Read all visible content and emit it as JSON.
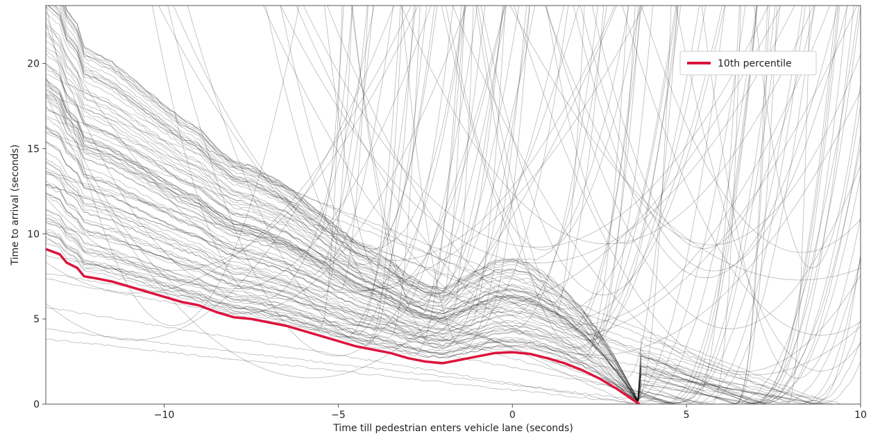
{
  "chart_data": {
    "type": "line",
    "title": "",
    "xlabel": "Time till pedestrian enters vehicle lane (seconds)",
    "ylabel": "Time to arrival (seconds)",
    "xlim": [
      -13.4,
      10
    ],
    "ylim": [
      0,
      23.4
    ],
    "xticks": [
      -10,
      -5,
      0,
      5,
      10
    ],
    "xtick_labels": [
      "−10",
      "−5",
      "0",
      "5",
      "10"
    ],
    "yticks": [
      0,
      5,
      10,
      15,
      20
    ],
    "ytick_labels": [
      "0",
      "5",
      "10",
      "15",
      "20"
    ],
    "grid": false,
    "legend": {
      "position": "top-right",
      "entries": [
        "10th percentile"
      ]
    },
    "colors": {
      "highlight": "#dc143c",
      "trajectories": "#000000"
    },
    "series": [
      {
        "name": "10th percentile",
        "x": [
          -13.4,
          -13.0,
          -12.8,
          -12.5,
          -12.3,
          -12.0,
          -11.5,
          -11.0,
          -10.5,
          -10.0,
          -9.5,
          -9.0,
          -8.5,
          -8.0,
          -7.5,
          -7.0,
          -6.5,
          -6.0,
          -5.5,
          -5.0,
          -4.5,
          -4.0,
          -3.5,
          -3.0,
          -2.5,
          -2.0,
          -1.5,
          -1.0,
          -0.5,
          0.0,
          0.5,
          1.0,
          1.5,
          2.0,
          2.5,
          3.0,
          3.5,
          3.65
        ],
        "y": [
          9.1,
          8.8,
          8.3,
          8.0,
          7.5,
          7.4,
          7.2,
          6.9,
          6.6,
          6.3,
          6.0,
          5.8,
          5.4,
          5.1,
          5.0,
          4.8,
          4.6,
          4.3,
          4.0,
          3.7,
          3.4,
          3.2,
          3.0,
          2.7,
          2.5,
          2.4,
          2.6,
          2.8,
          3.0,
          3.05,
          2.95,
          2.7,
          2.4,
          2.0,
          1.5,
          0.9,
          0.2,
          0.0
        ]
      }
    ],
    "trajectory_count": 160
  }
}
